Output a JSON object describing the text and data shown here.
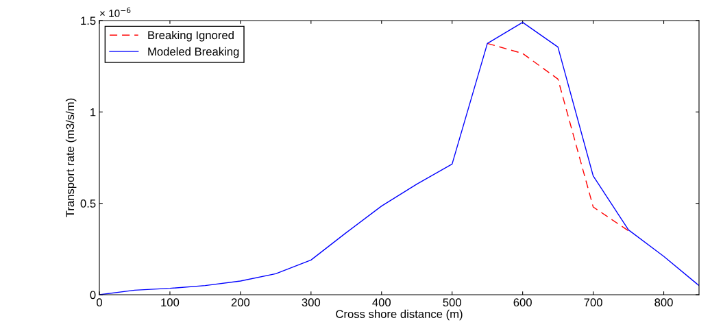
{
  "chart_data": {
    "type": "line",
    "xlabel": "Cross shore distance (m)",
    "ylabel": "Transport rate (m3/s/m)",
    "annotations": [
      "× 10$^{−6}$"
    ],
    "xlim": [
      0,
      850
    ],
    "xticks": [
      0,
      100,
      200,
      300,
      400,
      500,
      600,
      700,
      800
    ],
    "ylim": [
      0,
      1.5
    ],
    "yticks": [
      0,
      0.5,
      1,
      1.5
    ],
    "grid": false,
    "legend": "top left",
    "marker": "none",
    "series": [
      {
        "name": "Breaking Ignored",
        "color": "#ff0000",
        "line_style": "dashed",
        "x": [
          550,
          600,
          650,
          700,
          750
        ],
        "values": [
          1.375,
          1.32,
          1.18,
          0.48,
          0.35
        ]
      },
      {
        "name": "Modeled Breaking",
        "color": "#0000ff",
        "line_style": "solid",
        "x": [
          0,
          50,
          100,
          150,
          200,
          250,
          300,
          350,
          400,
          450,
          500,
          550,
          600,
          650,
          700,
          750,
          800,
          850
        ],
        "values": [
          0,
          0.025,
          0.035,
          0.05,
          0.075,
          0.115,
          0.19,
          0.34,
          0.485,
          0.605,
          0.715,
          1.375,
          1.49,
          1.355,
          0.65,
          0.355,
          0.21,
          0.05
        ]
      }
    ]
  }
}
